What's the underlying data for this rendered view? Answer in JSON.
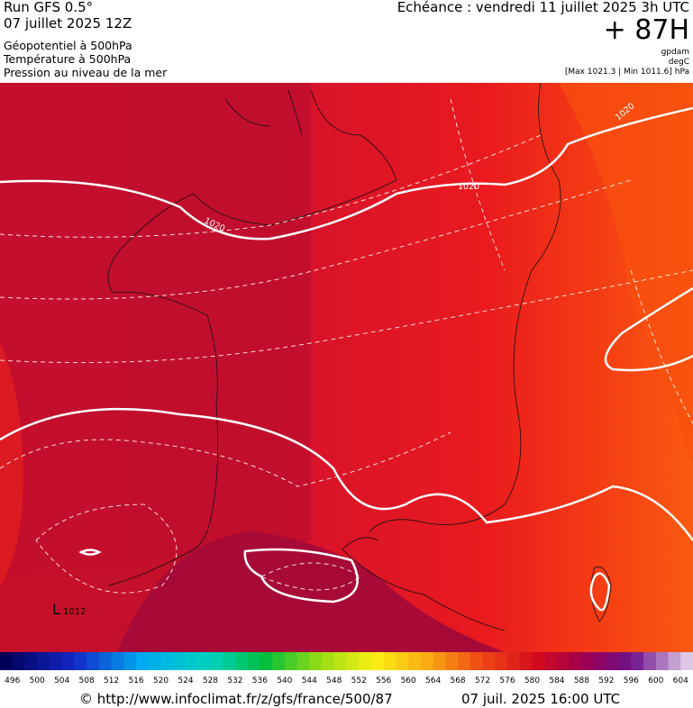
{
  "header": {
    "model": "Run GFS 0.5°",
    "run_date": "07 juillet 2025 12Z",
    "field_1": "Géopotentiel à 500hPa",
    "field_2": "Température à 500hPa",
    "field_3": "Pression au niveau de la mer",
    "forecast_time": "Echéance : vendredi 11 juillet 2025 3h UTC",
    "lead_time": "+ 87H",
    "unit_1": "gpdam",
    "unit_2": "degC",
    "pressure_range": "[Max 1021.3 | Min 1011.6] hPa"
  },
  "map": {
    "isobar_labels": [
      "1020",
      "1020",
      "1020"
    ],
    "low_symbol": "L",
    "low_value": "1012"
  },
  "legend": {
    "labels": [
      496,
      500,
      504,
      508,
      512,
      516,
      520,
      524,
      528,
      532,
      536,
      540,
      544,
      548,
      552,
      556,
      560,
      564,
      568,
      572,
      576,
      580,
      584,
      588,
      592,
      596,
      600,
      604
    ]
  },
  "footer": {
    "source": "© http://www.infoclimat.fr/z/gfs/france/500/87",
    "valid_time": "07 juil. 2025 16:00 UTC"
  }
}
